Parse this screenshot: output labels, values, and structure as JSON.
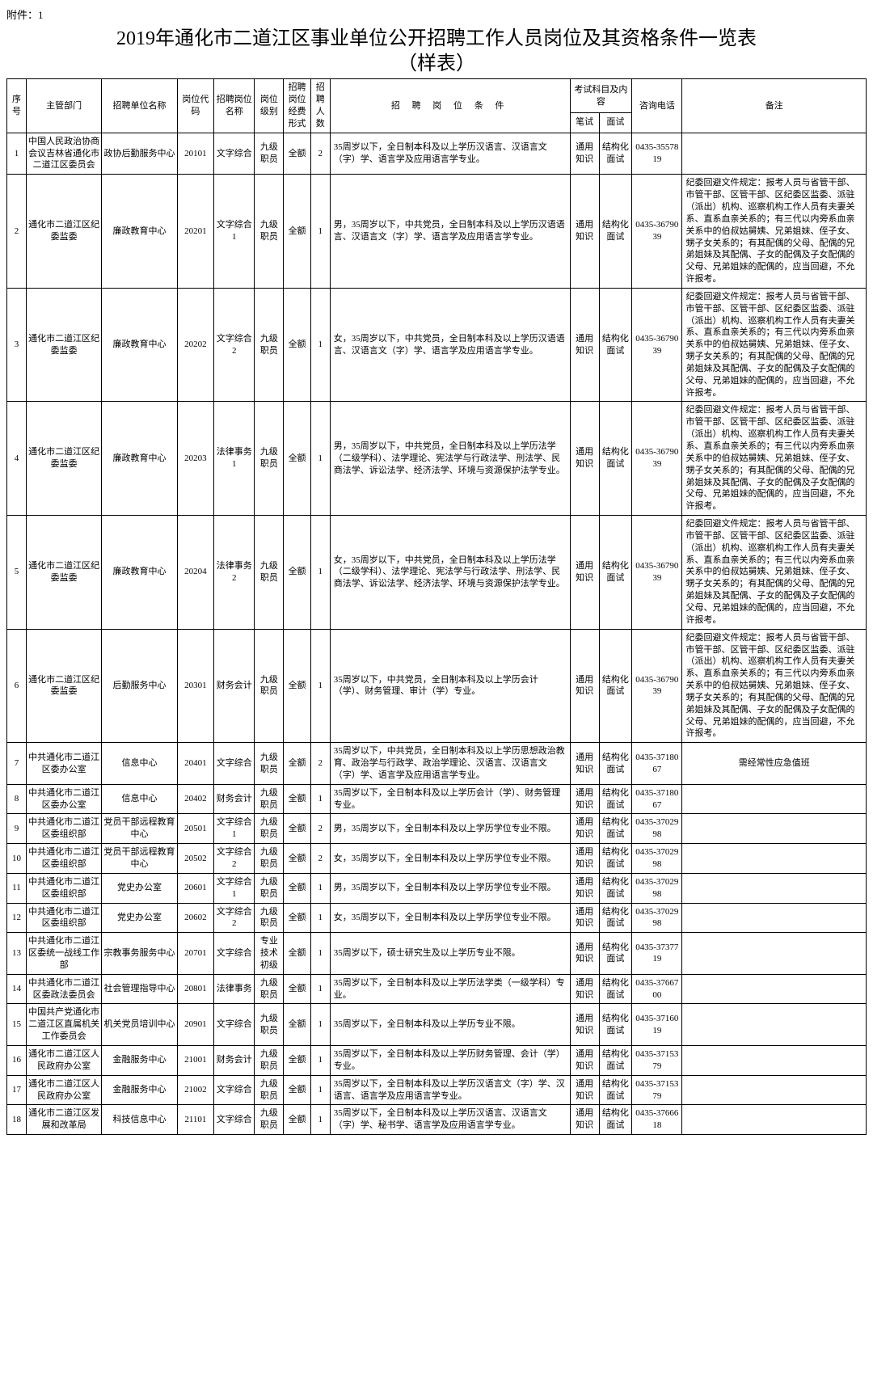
{
  "attachment_label": "附件：1",
  "title_line1": "2019年通化市二道江区事业单位公开招聘工作人员岗位及其资格条件一览表",
  "title_line2": "（样表）",
  "headers": {
    "seq": "序号",
    "dept": "主管部门",
    "unit": "招聘单位名称",
    "code": "岗位代码",
    "pos": "招聘岗位名称",
    "level": "岗位级别",
    "fund": "招聘岗位经费形式",
    "count": "招聘人数",
    "cond": "招 聘 岗 位 条 件",
    "exam": "考试科目及内容",
    "exam_written": "笔试",
    "exam_interview": "面试",
    "phone": "咨询电话",
    "remark": "备注"
  },
  "avoidance_note": "纪委回避文件规定：报考人员与省管干部、市管干部、区管干部、区纪委区监委、派驻（派出）机构、巡察机构工作人员有夫妻关系、直系血亲关系的；有三代以内旁系血亲关系中的伯叔姑舅姨、兄弟姐妹、侄子女、甥子女关系的；有其配偶的父母、配偶的兄弟姐妹及其配偶、子女的配偶及子女配偶的父母、兄弟姐妹的配偶的，应当回避，不允许报考。",
  "rows": [
    {
      "seq": "1",
      "dept": "中国人民政治协商会议吉林省通化市二道江区委员会",
      "unit": "政协后勤服务中心",
      "code": "20101",
      "pos": "文字综合",
      "level": "九级职员",
      "fund": "全额",
      "count": "2",
      "cond": "35周岁以下，全日制本科及以上学历汉语言、汉语言文（字）学、语言学及应用语言学专业。",
      "written": "通用知识",
      "interview": "结构化面试",
      "phone": "0435-3557819",
      "remark": ""
    },
    {
      "seq": "2",
      "dept": "通化市二道江区纪委监委",
      "unit": "廉政教育中心",
      "code": "20201",
      "pos": "文字综合1",
      "level": "九级职员",
      "fund": "全额",
      "count": "1",
      "cond": "男，35周岁以下，中共党员，全日制本科及以上学历汉语语言、汉语言文（字）学、语言学及应用语言学专业。",
      "written": "通用知识",
      "interview": "结构化面试",
      "phone": "0435-3679039",
      "remark": "@AVOID"
    },
    {
      "seq": "3",
      "dept": "通化市二道江区纪委监委",
      "unit": "廉政教育中心",
      "code": "20202",
      "pos": "文字综合2",
      "level": "九级职员",
      "fund": "全额",
      "count": "1",
      "cond": "女，35周岁以下，中共党员，全日制本科及以上学历汉语语言、汉语言文（字）学、语言学及应用语言学专业。",
      "written": "通用知识",
      "interview": "结构化面试",
      "phone": "0435-3679039",
      "remark": "@AVOID"
    },
    {
      "seq": "4",
      "dept": "通化市二道江区纪委监委",
      "unit": "廉政教育中心",
      "code": "20203",
      "pos": "法律事务1",
      "level": "九级职员",
      "fund": "全额",
      "count": "1",
      "cond": "男，35周岁以下，中共党员，全日制本科及以上学历法学（二级学科）、法学理论、宪法学与行政法学、刑法学、民商法学、诉讼法学、经济法学、环境与资源保护法学专业。",
      "written": "通用知识",
      "interview": "结构化面试",
      "phone": "0435-3679039",
      "remark": "@AVOID"
    },
    {
      "seq": "5",
      "dept": "通化市二道江区纪委监委",
      "unit": "廉政教育中心",
      "code": "20204",
      "pos": "法律事务2",
      "level": "九级职员",
      "fund": "全额",
      "count": "1",
      "cond": "女，35周岁以下，中共党员，全日制本科及以上学历法学（二级学科）、法学理论、宪法学与行政法学、刑法学、民商法学、诉讼法学、经济法学、环境与资源保护法学专业。",
      "written": "通用知识",
      "interview": "结构化面试",
      "phone": "0435-3679039",
      "remark": "@AVOID"
    },
    {
      "seq": "6",
      "dept": "通化市二道江区纪委监委",
      "unit": "后勤服务中心",
      "code": "20301",
      "pos": "财务会计",
      "level": "九级职员",
      "fund": "全额",
      "count": "1",
      "cond": "35周岁以下，中共党员，全日制本科及以上学历会计（学）、财务管理、审计（学）专业。",
      "written": "通用知识",
      "interview": "结构化面试",
      "phone": "0435-3679039",
      "remark": "@AVOID"
    },
    {
      "seq": "7",
      "dept": "中共通化市二道江区委办公室",
      "unit": "信息中心",
      "code": "20401",
      "pos": "文字综合",
      "level": "九级职员",
      "fund": "全额",
      "count": "2",
      "cond": "35周岁以下，中共党员，全日制本科及以上学历思想政治教育、政治学与行政学、政治学理论、汉语言、汉语言文（字）学、语言学及应用语言学专业。",
      "written": "通用知识",
      "interview": "结构化面试",
      "phone": "0435-3718067",
      "remark": "需经常性应急值班"
    },
    {
      "seq": "8",
      "dept": "中共通化市二道江区委办公室",
      "unit": "信息中心",
      "code": "20402",
      "pos": "财务会计",
      "level": "九级职员",
      "fund": "全额",
      "count": "1",
      "cond": "35周岁以下，全日制本科及以上学历会计（学）、财务管理专业。",
      "written": "通用知识",
      "interview": "结构化面试",
      "phone": "0435-3718067",
      "remark": ""
    },
    {
      "seq": "9",
      "dept": "中共通化市二道江区委组织部",
      "unit": "党员干部远程教育中心",
      "code": "20501",
      "pos": "文字综合1",
      "level": "九级职员",
      "fund": "全额",
      "count": "2",
      "cond": "男，35周岁以下，全日制本科及以上学历学位专业不限。",
      "written": "通用知识",
      "interview": "结构化面试",
      "phone": "0435-3702998",
      "remark": ""
    },
    {
      "seq": "10",
      "dept": "中共通化市二道江区委组织部",
      "unit": "党员干部远程教育中心",
      "code": "20502",
      "pos": "文字综合2",
      "level": "九级职员",
      "fund": "全额",
      "count": "2",
      "cond": "女，35周岁以下，全日制本科及以上学历学位专业不限。",
      "written": "通用知识",
      "interview": "结构化面试",
      "phone": "0435-3702998",
      "remark": ""
    },
    {
      "seq": "11",
      "dept": "中共通化市二道江区委组织部",
      "unit": "党史办公室",
      "code": "20601",
      "pos": "文字综合1",
      "level": "九级职员",
      "fund": "全额",
      "count": "1",
      "cond": "男，35周岁以下，全日制本科及以上学历学位专业不限。",
      "written": "通用知识",
      "interview": "结构化面试",
      "phone": "0435-3702998",
      "remark": ""
    },
    {
      "seq": "12",
      "dept": "中共通化市二道江区委组织部",
      "unit": "党史办公室",
      "code": "20602",
      "pos": "文字综合2",
      "level": "九级职员",
      "fund": "全额",
      "count": "1",
      "cond": "女，35周岁以下，全日制本科及以上学历学位专业不限。",
      "written": "通用知识",
      "interview": "结构化面试",
      "phone": "0435-3702998",
      "remark": ""
    },
    {
      "seq": "13",
      "dept": "中共通化市二道江区委统一战线工作部",
      "unit": "宗教事务服务中心",
      "code": "20701",
      "pos": "文字综合",
      "level": "专业技术初级",
      "fund": "全额",
      "count": "1",
      "cond": "35周岁以下，硕士研究生及以上学历专业不限。",
      "written": "通用知识",
      "interview": "结构化面试",
      "phone": "0435-3737719",
      "remark": ""
    },
    {
      "seq": "14",
      "dept": "中共通化市二道江区委政法委员会",
      "unit": "社会管理指导中心",
      "code": "20801",
      "pos": "法律事务",
      "level": "九级职员",
      "fund": "全额",
      "count": "1",
      "cond": "35周岁以下，全日制本科及以上学历法学类（一级学科）专业。",
      "written": "通用知识",
      "interview": "结构化面试",
      "phone": "0435-3766700",
      "remark": ""
    },
    {
      "seq": "15",
      "dept": "中国共产党通化市二道江区直属机关工作委员会",
      "unit": "机关党员培训中心",
      "code": "20901",
      "pos": "文字综合",
      "level": "九级职员",
      "fund": "全额",
      "count": "1",
      "cond": "35周岁以下，全日制本科及以上学历专业不限。",
      "written": "通用知识",
      "interview": "结构化面试",
      "phone": "0435-3716019",
      "remark": ""
    },
    {
      "seq": "16",
      "dept": "通化市二道江区人民政府办公室",
      "unit": "金融服务中心",
      "code": "21001",
      "pos": "财务会计",
      "level": "九级职员",
      "fund": "全额",
      "count": "1",
      "cond": "35周岁以下，全日制本科及以上学历财务管理、会计（学）专业。",
      "written": "通用知识",
      "interview": "结构化面试",
      "phone": "0435-3715379",
      "remark": ""
    },
    {
      "seq": "17",
      "dept": "通化市二道江区人民政府办公室",
      "unit": "金融服务中心",
      "code": "21002",
      "pos": "文字综合",
      "level": "九级职员",
      "fund": "全额",
      "count": "1",
      "cond": "35周岁以下，全日制本科及以上学历汉语言文（字）学、汉语言、语言学及应用语言学专业。",
      "written": "通用知识",
      "interview": "结构化面试",
      "phone": "0435-3715379",
      "remark": ""
    },
    {
      "seq": "18",
      "dept": "通化市二道江区发展和改革局",
      "unit": "科技信息中心",
      "code": "21101",
      "pos": "文字综合",
      "level": "九级职员",
      "fund": "全额",
      "count": "1",
      "cond": "35周岁以下，全日制本科及以上学历汉语言、汉语言文（字）学、秘书学、语言学及应用语言学专业。",
      "written": "通用知识",
      "interview": "结构化面试",
      "phone": "0435-3766618",
      "remark": ""
    }
  ]
}
